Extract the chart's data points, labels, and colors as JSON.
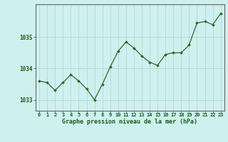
{
  "hours": [
    0,
    1,
    2,
    3,
    4,
    5,
    6,
    7,
    8,
    9,
    10,
    11,
    12,
    13,
    14,
    15,
    16,
    17,
    18,
    19,
    20,
    21,
    22,
    23
  ],
  "pressure": [
    1033.6,
    1033.55,
    1033.3,
    1033.55,
    1033.8,
    1033.6,
    1033.35,
    1033.0,
    1033.5,
    1034.05,
    1034.55,
    1034.85,
    1034.65,
    1034.4,
    1034.2,
    1034.1,
    1034.45,
    1034.5,
    1034.5,
    1034.75,
    1035.45,
    1035.5,
    1035.4,
    1035.75
  ],
  "line_color": "#2d6a2d",
  "marker_color": "#2d6a2d",
  "bg_color": "#cef0ee",
  "grid_color": "#b8d8d5",
  "axis_color": "#666666",
  "xlabel": "Graphe pression niveau de la mer (hPa)",
  "xlabel_color": "#1a5c1a",
  "tick_label_color": "#1a5c1a",
  "ytick_labels": [
    1033,
    1034,
    1035
  ],
  "ylim": [
    1032.65,
    1036.05
  ],
  "xlim": [
    -0.5,
    23.5
  ]
}
